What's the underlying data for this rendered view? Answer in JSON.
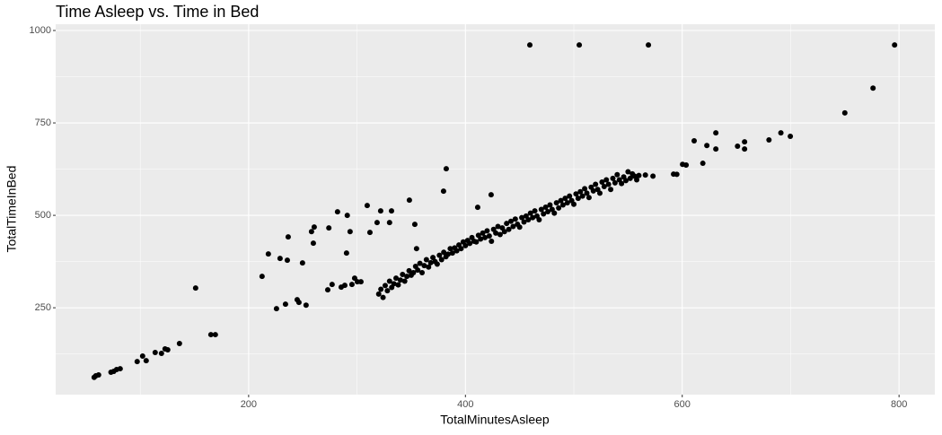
{
  "chart_data": {
    "type": "scatter",
    "title": "Time Asleep vs. Time in Bed",
    "x_label": "TotalMinutesAsleep",
    "y_label": "TotalTimeInBed",
    "color": "#000000",
    "xlim": [
      22,
      833
    ],
    "ylim": [
      15,
      1017
    ],
    "xticks": [
      200,
      400,
      600,
      800
    ],
    "yticks": [
      250,
      500,
      750,
      1000
    ],
    "xminor": [
      100,
      300,
      500,
      700
    ],
    "yminor": [
      125,
      375,
      625,
      875
    ],
    "grid": true,
    "x": [
      57.5,
      59,
      61.6,
      73,
      75.6,
      78.2,
      81.5,
      97.2,
      102.2,
      105.5,
      113.8,
      119.6,
      122.9,
      125.4,
      136.2,
      151.1,
      165.2,
      169.3,
      212.4,
      218.2,
      225.7,
      229,
      234,
      236.5,
      235.7,
      244.8,
      246.4,
      249.7,
      253,
      258,
      260.5,
      259.7,
      274,
      273,
      277,
      282,
      285.4,
      288.7,
      291,
      290.3,
      293.6,
      295.3,
      297.8,
      300.3,
      303.6,
      309.4,
      311.9,
      318.5,
      321.8,
      331.8,
      330,
      348.3,
      353.3,
      354.9,
      379.8,
      382.3,
      411.3,
      423.7,
      320,
      322,
      324,
      326,
      328,
      330,
      332,
      334,
      336,
      338,
      340,
      342,
      344,
      346,
      348,
      350,
      352,
      354,
      356,
      358,
      360,
      362,
      364,
      366,
      368,
      370,
      372,
      374,
      376,
      378,
      380,
      382,
      384,
      386,
      388,
      390,
      392,
      394,
      396,
      398,
      400,
      402,
      404,
      406,
      408,
      410,
      412,
      414,
      416,
      418,
      420,
      422,
      424,
      426,
      428,
      430,
      432,
      434,
      436,
      438,
      440,
      442,
      444,
      446,
      448,
      450,
      452,
      454,
      456,
      458,
      460,
      462,
      464,
      466,
      468,
      470,
      472,
      474,
      476,
      478,
      480,
      482,
      484,
      486,
      488,
      490,
      492,
      494,
      496,
      498,
      500,
      502,
      504,
      506,
      508,
      510,
      512,
      514,
      516,
      518,
      520,
      522,
      524,
      526,
      528,
      530,
      532,
      534,
      536,
      538,
      540,
      542,
      544,
      546,
      548,
      550,
      552,
      554,
      556,
      558,
      560,
      566,
      573,
      592,
      595,
      600.3,
      603.6,
      611,
      619,
      622.7,
      631,
      631,
      651,
      657.5,
      657.5,
      680,
      691,
      699.7,
      750,
      776,
      459.4,
      505,
      568.8,
      795.9
    ],
    "values": [
      61.7,
      66,
      68.4,
      75.7,
      78,
      82.8,
      85.2,
      104.6,
      119.2,
      107,
      128.9,
      126.5,
      138.6,
      136.2,
      153.2,
      303.4,
      177.4,
      177.4,
      335,
      395.6,
      247.6,
      383.5,
      259.7,
      441.7,
      378.6,
      271.8,
      264.6,
      371.4,
      257,
      456,
      468.4,
      424.8,
      466,
      298.5,
      313,
      509.7,
      305.8,
      310.7,
      500,
      398,
      456,
      313,
      330,
      320.4,
      320.4,
      526.7,
      453.9,
      480.6,
      512.1,
      512,
      480.6,
      541.3,
      475.7,
      410,
      565.5,
      626.2,
      521.8,
      555.8,
      287,
      300,
      278,
      310,
      296,
      322,
      305,
      315,
      330,
      312,
      325,
      340,
      322,
      335,
      350,
      338,
      345,
      362,
      352,
      370,
      345,
      364,
      380,
      360,
      372,
      386,
      375,
      368,
      392,
      380,
      400,
      388,
      395,
      410,
      398,
      412,
      404,
      420,
      410,
      428,
      418,
      432,
      424,
      440,
      430,
      428,
      446,
      436,
      452,
      440,
      458,
      444,
      430,
      462,
      452,
      470,
      448,
      466,
      456,
      478,
      462,
      484,
      470,
      490,
      476,
      468,
      494,
      482,
      498,
      488,
      506,
      494,
      512,
      498,
      488,
      516,
      504,
      522,
      510,
      528,
      516,
      506,
      534,
      520,
      540,
      528,
      546,
      534,
      552,
      540,
      530,
      558,
      546,
      564,
      552,
      572,
      560,
      548,
      576,
      566,
      584,
      570,
      560,
      590,
      578,
      596,
      584,
      570,
      600,
      588,
      610,
      596,
      586,
      604,
      594,
      618,
      600,
      612,
      606,
      596,
      608,
      609,
      606,
      611.6,
      611,
      638,
      636,
      701.5,
      640.8,
      689,
      679.6,
      723,
      687,
      699,
      679.6,
      704,
      723,
      713.6,
      777,
      844,
      961,
      961,
      961,
      961
    ]
  }
}
